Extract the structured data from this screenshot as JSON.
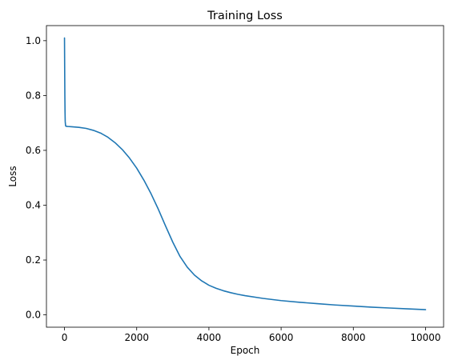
{
  "chart_data": {
    "type": "line",
    "title": "Training Loss",
    "xlabel": "Epoch",
    "ylabel": "Loss",
    "xlim": [
      -500,
      10500
    ],
    "ylim": [
      -0.045,
      1.055
    ],
    "xticks": [
      0,
      2000,
      4000,
      6000,
      8000,
      10000
    ],
    "yticks": [
      0.0,
      0.2,
      0.4,
      0.6,
      0.8,
      1.0
    ],
    "xtick_labels": [
      "0",
      "2000",
      "4000",
      "6000",
      "8000",
      "10000"
    ],
    "ytick_labels": [
      "0.0",
      "0.2",
      "0.4",
      "0.6",
      "0.8",
      "1.0"
    ],
    "grid": false,
    "legend": "none",
    "series": [
      {
        "color": "#1f77b4",
        "x": [
          0,
          5,
          10,
          15,
          20,
          30,
          40,
          60,
          80,
          100,
          200,
          400,
          600,
          800,
          1000,
          1200,
          1400,
          1600,
          1800,
          2000,
          2200,
          2400,
          2600,
          2800,
          3000,
          3200,
          3400,
          3600,
          3800,
          4000,
          4200,
          4400,
          4600,
          4800,
          5000,
          5500,
          6000,
          6500,
          7000,
          7500,
          8000,
          8500,
          9000,
          9500,
          10000
        ],
        "y": [
          1.01,
          0.9,
          0.8,
          0.74,
          0.705,
          0.69,
          0.688,
          0.688,
          0.687,
          0.687,
          0.686,
          0.684,
          0.68,
          0.673,
          0.663,
          0.648,
          0.628,
          0.603,
          0.572,
          0.535,
          0.491,
          0.441,
          0.385,
          0.324,
          0.265,
          0.213,
          0.174,
          0.145,
          0.124,
          0.108,
          0.097,
          0.088,
          0.081,
          0.075,
          0.07,
          0.06,
          0.052,
          0.046,
          0.041,
          0.036,
          0.032,
          0.028,
          0.025,
          0.022,
          0.019
        ]
      }
    ]
  }
}
